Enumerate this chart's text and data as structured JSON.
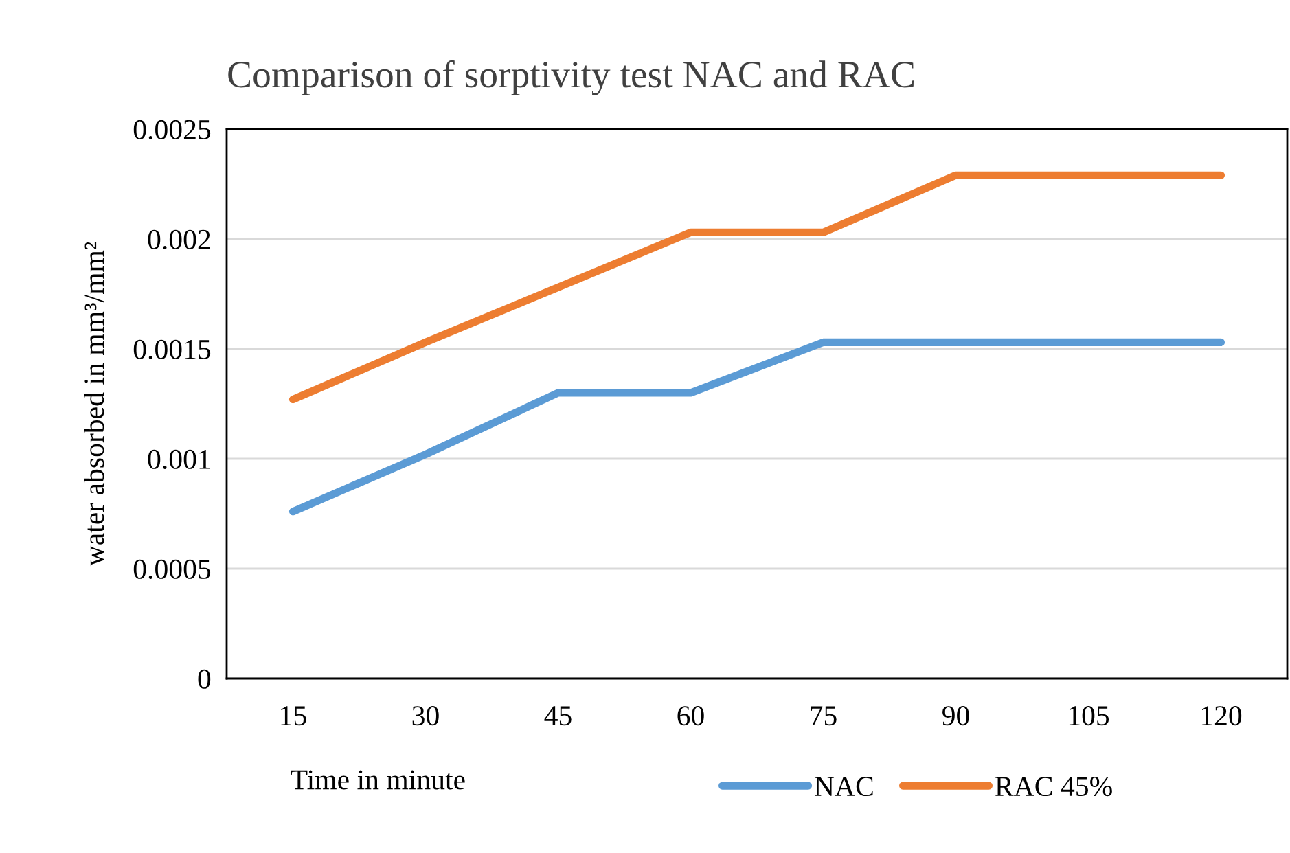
{
  "chart_data": {
    "type": "line",
    "title": "Comparison of sorptivity test NAC and RAC",
    "xlabel": "Time in minute",
    "ylabel": "water absorbed in mm³/mm²",
    "categories": [
      "15",
      "30",
      "45",
      "60",
      "75",
      "90",
      "105",
      "120"
    ],
    "series": [
      {
        "name": "NAC",
        "color": "#5b9bd5",
        "values": [
          0.00076,
          0.00102,
          0.0013,
          0.0013,
          0.00153,
          0.00153,
          0.00153,
          0.00153
        ]
      },
      {
        "name": "RAC 45%",
        "color": "#ed7d31",
        "values": [
          0.00127,
          0.00153,
          0.00178,
          0.00203,
          0.00203,
          0.00229,
          0.00229,
          0.00229
        ]
      }
    ],
    "ylim": [
      0,
      0.0025
    ],
    "yticks": [
      0,
      0.0005,
      0.001,
      0.0015,
      0.002,
      0.0025
    ],
    "grid": "y",
    "legend": "bottom right",
    "marker": "none",
    "line_style": "solid"
  }
}
